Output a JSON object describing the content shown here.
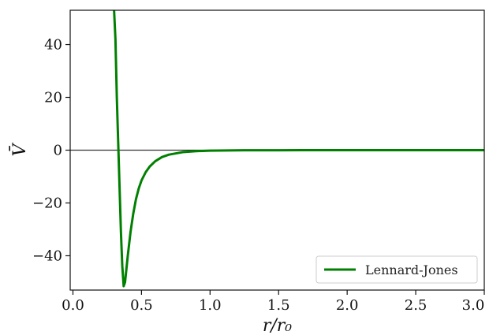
{
  "chart_data": {
    "type": "line",
    "xlim": [
      -0.02,
      3.0
    ],
    "ylim": [
      -53,
      53
    ],
    "xticks": [
      0.0,
      0.5,
      1.0,
      1.5,
      2.0,
      2.5,
      3.0
    ],
    "xtick_labels": [
      "0.0",
      "0.5",
      "1.0",
      "1.5",
      "2.0",
      "2.5",
      "3.0"
    ],
    "yticks": [
      -40,
      -20,
      0,
      20,
      40
    ],
    "ytick_labels": [
      "−40",
      "−20",
      "0",
      "20",
      "40"
    ],
    "xlabel": "r/r₀",
    "ylabel": "V̄",
    "legend": {
      "placement": "lower-right",
      "entries": [
        "Lennard-Jones"
      ]
    },
    "reference_line_y": 0,
    "grid": false,
    "series": [
      {
        "name": "Lennard-Jones",
        "color": "#008000",
        "x": [
          0.3,
          0.31,
          0.32,
          0.33,
          0.34,
          0.35,
          0.36,
          0.37,
          0.38,
          0.39,
          0.4,
          0.42,
          0.44,
          0.46,
          0.48,
          0.5,
          0.53,
          0.56,
          0.6,
          0.65,
          0.7,
          0.8,
          0.9,
          1.0,
          1.25,
          1.5,
          2.0,
          2.5,
          3.0
        ],
        "y": [
          53,
          42,
          20,
          3,
          -14,
          -31,
          -44,
          -51.5,
          -50,
          -45,
          -40,
          -31,
          -24,
          -18.5,
          -14.5,
          -11.5,
          -8.4,
          -6.2,
          -4.2,
          -2.6,
          -1.7,
          -0.76,
          -0.38,
          -0.2,
          -0.05,
          -0.02,
          -0.005,
          -0.001,
          0
        ]
      }
    ]
  }
}
